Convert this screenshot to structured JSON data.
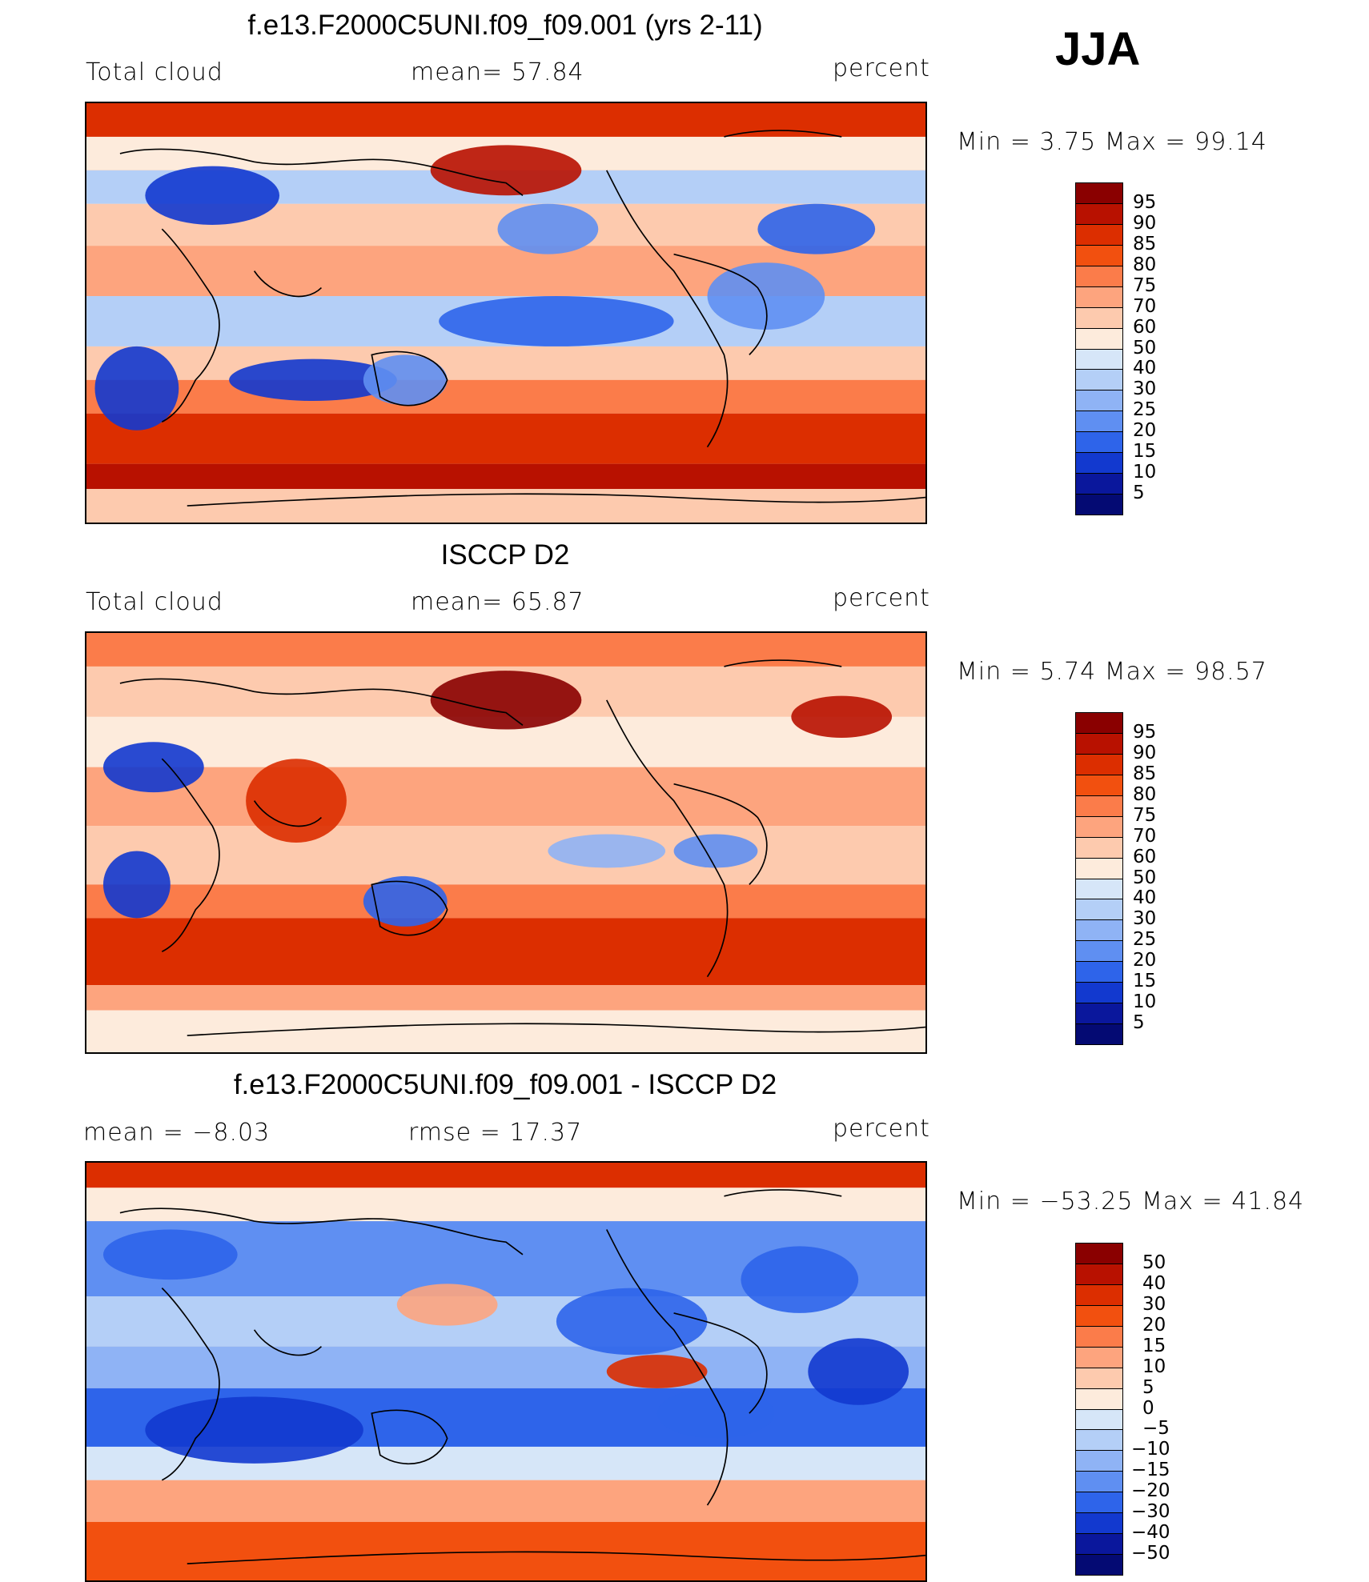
{
  "season": "JJA",
  "panels": [
    {
      "title": "f.e13.F2000C5UNI.f09_f09.001 (yrs 2-11)",
      "left_label": "Total cloud",
      "center_label": "mean=   57.84",
      "right_label": "percent",
      "minmax": "Min  =     3.75  Max  =    99.14",
      "scheme": "abs",
      "colorbar_labels": [
        "95",
        "90",
        "85",
        "80",
        "75",
        "70",
        "60",
        "50",
        "40",
        "30",
        "25",
        "20",
        "15",
        "10",
        "5"
      ],
      "colorbar_colors": [
        "#8a0000",
        "#b81100",
        "#dc2e00",
        "#f2500f",
        "#fb7c4a",
        "#fda47e",
        "#fdcaae",
        "#fdebdc",
        "#d6e6f8",
        "#b4cff7",
        "#8fb3f5",
        "#5f8ff2",
        "#2e64ea",
        "#1239cf",
        "#0a179c",
        "#040a73"
      ]
    },
    {
      "title": "ISCCP D2",
      "left_label": "Total cloud",
      "center_label": "mean=   65.87",
      "right_label": "percent",
      "minmax": "Min  =     5.74  Max  =    98.57",
      "scheme": "abs",
      "colorbar_labels": [
        "95",
        "90",
        "85",
        "80",
        "75",
        "70",
        "60",
        "50",
        "40",
        "30",
        "25",
        "20",
        "15",
        "10",
        "5"
      ],
      "colorbar_colors": [
        "#8a0000",
        "#b81100",
        "#dc2e00",
        "#f2500f",
        "#fb7c4a",
        "#fda47e",
        "#fdcaae",
        "#fdebdc",
        "#d6e6f8",
        "#b4cff7",
        "#8fb3f5",
        "#5f8ff2",
        "#2e64ea",
        "#1239cf",
        "#0a179c",
        "#040a73"
      ]
    },
    {
      "title": "f.e13.F2000C5UNI.f09_f09.001 - ISCCP D2",
      "left_label": "mean  =    −8.03",
      "center_label": "rmse  =    17.37",
      "right_label": "percent",
      "minmax": "Min  = −53.25  Max  =    41.84",
      "scheme": "diff",
      "colorbar_labels": [
        "50",
        "40",
        "30",
        "20",
        "15",
        "10",
        "5",
        "0",
        "−5",
        "−10",
        "−15",
        "−20",
        "−30",
        "−40",
        "−50"
      ],
      "colorbar_colors": [
        "#8a0000",
        "#b81100",
        "#dc2e00",
        "#f2500f",
        "#fb7c4a",
        "#fda47e",
        "#fdcaae",
        "#fdebdc",
        "#d6e6f8",
        "#b4cff7",
        "#8fb3f5",
        "#5f8ff2",
        "#2e64ea",
        "#1239cf",
        "#0a179c",
        "#040a73"
      ]
    }
  ]
}
